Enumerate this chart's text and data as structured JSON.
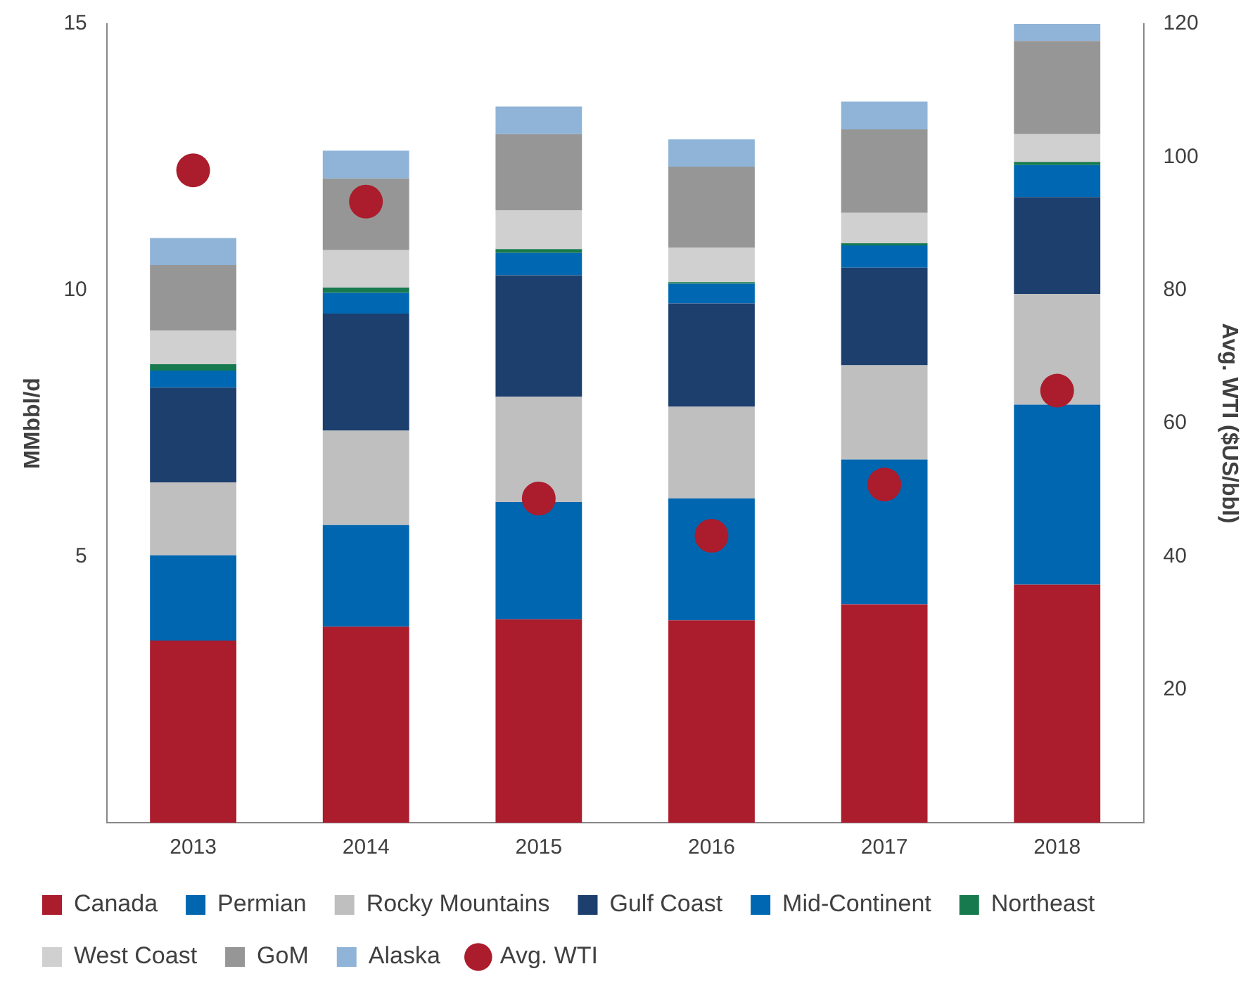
{
  "chart_data": {
    "type": "bar",
    "stacked": true,
    "ylabel": "MMbbl/d",
    "y2label": "Avg. WTI ($US/bbl)",
    "categories": [
      "2013",
      "2014",
      "2015",
      "2016",
      "2017",
      "2018"
    ],
    "ylim": [
      0,
      15
    ],
    "yticks": [
      5,
      10,
      15
    ],
    "y2lim": [
      0,
      120
    ],
    "y2ticks": [
      20,
      40,
      60,
      80,
      100,
      120
    ],
    "grid": false,
    "legend": "bottom",
    "marker": "circle",
    "series": [
      {
        "name": "Canada",
        "color": "#ab1c2c",
        "values": [
          3.42,
          3.68,
          3.82,
          3.8,
          4.1,
          4.47
        ]
      },
      {
        "name": "Permian",
        "color": "#0066b0",
        "values": [
          1.6,
          1.91,
          2.2,
          2.29,
          2.72,
          3.38
        ]
      },
      {
        "name": "Rocky Mountains",
        "color": "#bfbfbf",
        "values": [
          1.37,
          1.77,
          1.98,
          1.72,
          1.77,
          2.08
        ]
      },
      {
        "name": "Gulf Coast",
        "color": "#1c3f6e",
        "values": [
          1.78,
          2.2,
          2.28,
          1.94,
          1.83,
          1.82
        ]
      },
      {
        "name": "Mid-Continent",
        "color": "#0068b2",
        "values": [
          0.32,
          0.39,
          0.42,
          0.37,
          0.42,
          0.6
        ]
      },
      {
        "name": "Northeast",
        "color": "#177a4e",
        "values": [
          0.12,
          0.1,
          0.07,
          0.03,
          0.04,
          0.06
        ]
      },
      {
        "name": "West Coast",
        "color": "#d0d0d0",
        "values": [
          0.63,
          0.7,
          0.73,
          0.65,
          0.57,
          0.52
        ]
      },
      {
        "name": "GoM",
        "color": "#969696",
        "values": [
          1.23,
          1.35,
          1.43,
          1.52,
          1.57,
          1.75
        ]
      },
      {
        "name": "Alaska",
        "color": "#8fb4d8",
        "values": [
          0.51,
          0.52,
          0.52,
          0.51,
          0.52,
          0.32
        ]
      },
      {
        "name": "Avg. WTI",
        "type": "scatter",
        "axis": "y2",
        "color": "#ab1c2c",
        "values": [
          98,
          93.3,
          48.7,
          43.1,
          50.8,
          64.9
        ]
      }
    ]
  }
}
